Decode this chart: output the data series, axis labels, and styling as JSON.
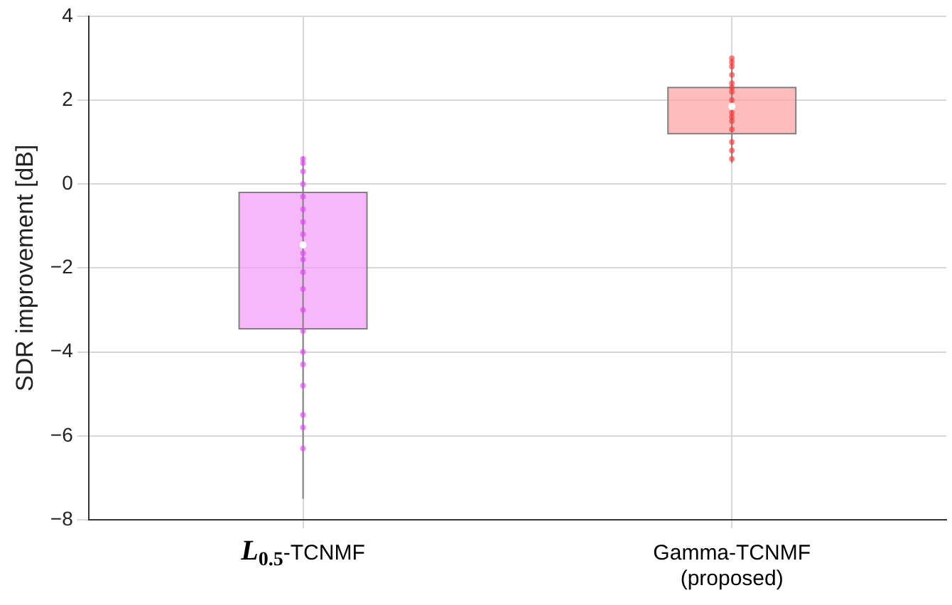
{
  "chart_data": {
    "type": "box",
    "ylabel": "SDR improvement [dB]",
    "categories": [
      "L$_{0.5}$-TCNMF",
      "Gamma-TCNMF (proposed)"
    ],
    "colors": [
      "#f49af8",
      "#ffa0a0"
    ],
    "boxes": [
      {
        "low": -7.5,
        "q1": -3.45,
        "median": -1.45,
        "q3": -0.2,
        "high": 0.65
      },
      {
        "low": 0.5,
        "q1": 1.2,
        "median": 1.85,
        "q3": 2.3,
        "high": 3.0
      }
    ],
    "series": [
      {
        "type": "scatter",
        "color": "#e040fb",
        "x": [
          "L$_{0.5}$-TCNMF",
          "L$_{0.5}$-TCNMF",
          "L$_{0.5}$-TCNMF",
          "L$_{0.5}$-TCNMF",
          "L$_{0.5}$-TCNMF",
          "L$_{0.5}$-TCNMF",
          "L$_{0.5}$-TCNMF",
          "L$_{0.5}$-TCNMF",
          "L$_{0.5}$-TCNMF",
          "L$_{0.5}$-TCNMF",
          "L$_{0.5}$-TCNMF",
          "L$_{0.5}$-TCNMF",
          "L$_{0.5}$-TCNMF",
          "L$_{0.5}$-TCNMF",
          "L$_{0.5}$-TCNMF",
          "L$_{0.5}$-TCNMF",
          "L$_{0.5}$-TCNMF",
          "L$_{0.5}$-TCNMF",
          "L$_{0.5}$-TCNMF",
          "L$_{0.5}$-TCNMF"
        ],
        "values": [
          0.6,
          0.5,
          0.3,
          0,
          -0.3,
          -0.6,
          -0.9,
          -1.2,
          -1.65,
          -1.8,
          -2.1,
          -2.5,
          -3,
          -3.5,
          -4,
          -4.3,
          -4.8,
          -5.5,
          -5.8,
          -6.3
        ]
      },
      {
        "type": "scatter",
        "color": "#ff3030",
        "x": [
          "Gamma-TCNMF (proposed)",
          "Gamma-TCNMF (proposed)",
          "Gamma-TCNMF (proposed)",
          "Gamma-TCNMF (proposed)",
          "Gamma-TCNMF (proposed)",
          "Gamma-TCNMF (proposed)",
          "Gamma-TCNMF (proposed)",
          "Gamma-TCNMF (proposed)",
          "Gamma-TCNMF (proposed)",
          "Gamma-TCNMF (proposed)",
          "Gamma-TCNMF (proposed)",
          "Gamma-TCNMF (proposed)",
          "Gamma-TCNMF (proposed)",
          "Gamma-TCNMF (proposed)",
          "Gamma-TCNMF (proposed)"
        ],
        "values": [
          3,
          2.9,
          2.8,
          2.6,
          2.4,
          2.3,
          2.2,
          2.0,
          1.6,
          1.7,
          1.5,
          1.3,
          1.0,
          0.8,
          0.6
        ]
      }
    ],
    "ylim": [
      -8,
      4
    ],
    "yticks": [
      -8,
      -6,
      -4,
      -2,
      0,
      2,
      4
    ],
    "grid": true
  }
}
